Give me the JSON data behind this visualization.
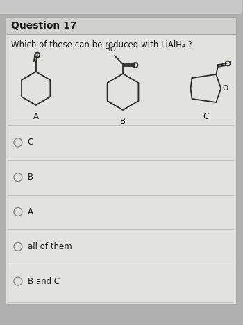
{
  "title": "Question 17",
  "question": "Which of these can be reduced with LiAlH₄ ?",
  "labels": [
    "A",
    "B",
    "C"
  ],
  "options": [
    "C",
    "B",
    "A",
    "all of them",
    "B and C"
  ],
  "outer_bg": "#b0b0b0",
  "card_color": "#e2e2df",
  "title_bg": "#d0d0cc",
  "text_color": "#1a1a1a",
  "line_color": "#2a2a2a",
  "font_size_title": 10,
  "font_size_question": 8.5,
  "font_size_options": 8.5,
  "font_size_label": 8.5
}
